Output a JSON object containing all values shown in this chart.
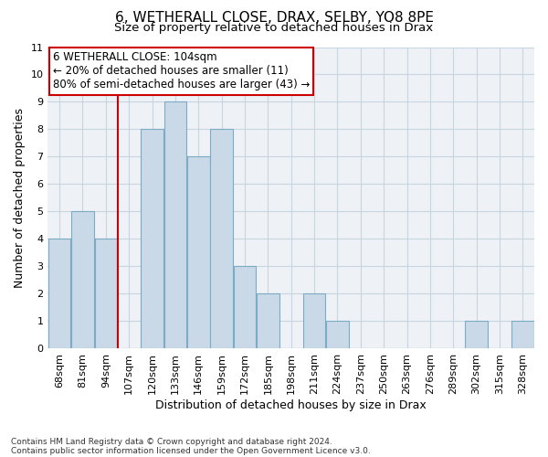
{
  "title1": "6, WETHERALL CLOSE, DRAX, SELBY, YO8 8PE",
  "title2": "Size of property relative to detached houses in Drax",
  "xlabel": "Distribution of detached houses by size in Drax",
  "ylabel": "Number of detached properties",
  "footnote1": "Contains HM Land Registry data © Crown copyright and database right 2024.",
  "footnote2": "Contains public sector information licensed under the Open Government Licence v3.0.",
  "categories": [
    "68sqm",
    "81sqm",
    "94sqm",
    "107sqm",
    "120sqm",
    "133sqm",
    "146sqm",
    "159sqm",
    "172sqm",
    "185sqm",
    "198sqm",
    "211sqm",
    "224sqm",
    "237sqm",
    "250sqm",
    "263sqm",
    "276sqm",
    "289sqm",
    "302sqm",
    "315sqm",
    "328sqm"
  ],
  "values": [
    4,
    5,
    4,
    0,
    8,
    9,
    7,
    8,
    3,
    2,
    0,
    2,
    1,
    0,
    0,
    0,
    0,
    0,
    1,
    0,
    1
  ],
  "bar_color": "#c9d9e8",
  "bar_edge_color": "#7bacc4",
  "vline_color": "#cc0000",
  "annotation_text": "6 WETHERALL CLOSE: 104sqm\n← 20% of detached houses are smaller (11)\n80% of semi-detached houses are larger (43) →",
  "annotation_box_color": "#ffffff",
  "annotation_box_edge_color": "#cc0000",
  "ylim": [
    0,
    11
  ],
  "yticks": [
    0,
    1,
    2,
    3,
    4,
    5,
    6,
    7,
    8,
    9,
    10,
    11
  ],
  "grid_color": "#c8d4e0",
  "bg_color": "#eef2f7",
  "title1_fontsize": 11,
  "title2_fontsize": 9.5,
  "xlabel_fontsize": 9,
  "ylabel_fontsize": 9,
  "tick_fontsize": 8,
  "annotation_fontsize": 8.5,
  "footnote_fontsize": 6.5
}
